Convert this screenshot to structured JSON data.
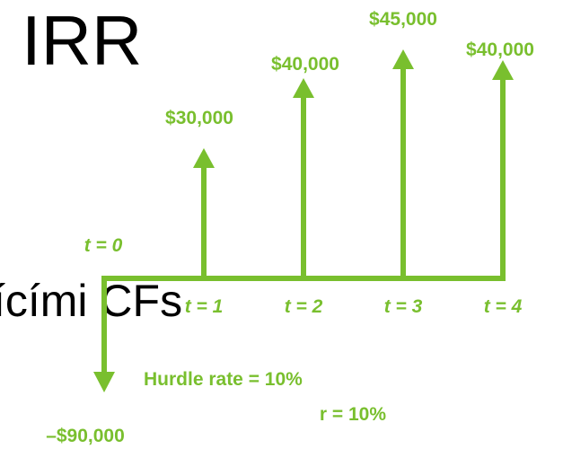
{
  "title": "IRR",
  "body_text": "ícími CFs",
  "cash_flows": [
    {
      "time_label": "t = 0",
      "amount_label": "–$90,000"
    },
    {
      "time_label": "t = 1",
      "amount_label": "$30,000"
    },
    {
      "time_label": "t = 2",
      "amount_label": "$40,000"
    },
    {
      "time_label": "t = 3",
      "amount_label": "$45,000"
    },
    {
      "time_label": "t = 4",
      "amount_label": "$40,000"
    }
  ],
  "hurdle_rate": "Hurdle rate = 10%",
  "rate": "r = 10%"
}
